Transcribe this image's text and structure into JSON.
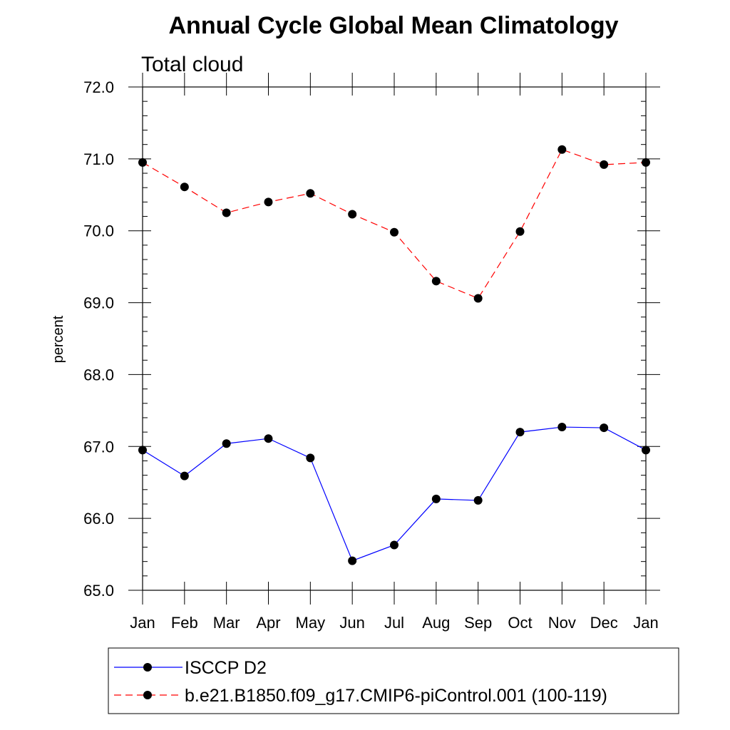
{
  "chart_data": {
    "type": "line",
    "title": "Annual Cycle Global Mean Climatology",
    "subtitle": "Total cloud",
    "ylabel": "percent",
    "xlabel": "",
    "categories": [
      "Jan",
      "Feb",
      "Mar",
      "Apr",
      "May",
      "Jun",
      "Jul",
      "Aug",
      "Sep",
      "Oct",
      "Nov",
      "Dec",
      "Jan"
    ],
    "ylim": [
      65.0,
      72.0
    ],
    "yticks": [
      "65.0",
      "66.0",
      "67.0",
      "68.0",
      "69.0",
      "70.0",
      "71.0",
      "72.0"
    ],
    "series": [
      {
        "name": "ISCCP D2",
        "color": "#0000ff",
        "dash": "solid",
        "values": [
          66.95,
          66.59,
          67.04,
          67.11,
          66.84,
          65.41,
          65.63,
          66.27,
          66.25,
          67.2,
          67.27,
          67.26,
          66.95
        ]
      },
      {
        "name": "b.e21.B1850.f09_g17.CMIP6-piControl.001 (100-119)",
        "color": "#ff0000",
        "dash": "dashed",
        "values": [
          70.95,
          70.61,
          70.25,
          70.4,
          70.52,
          70.23,
          69.98,
          69.3,
          69.06,
          69.99,
          71.13,
          70.92,
          70.95
        ]
      }
    ],
    "legend_position": "bottom",
    "grid": false
  }
}
